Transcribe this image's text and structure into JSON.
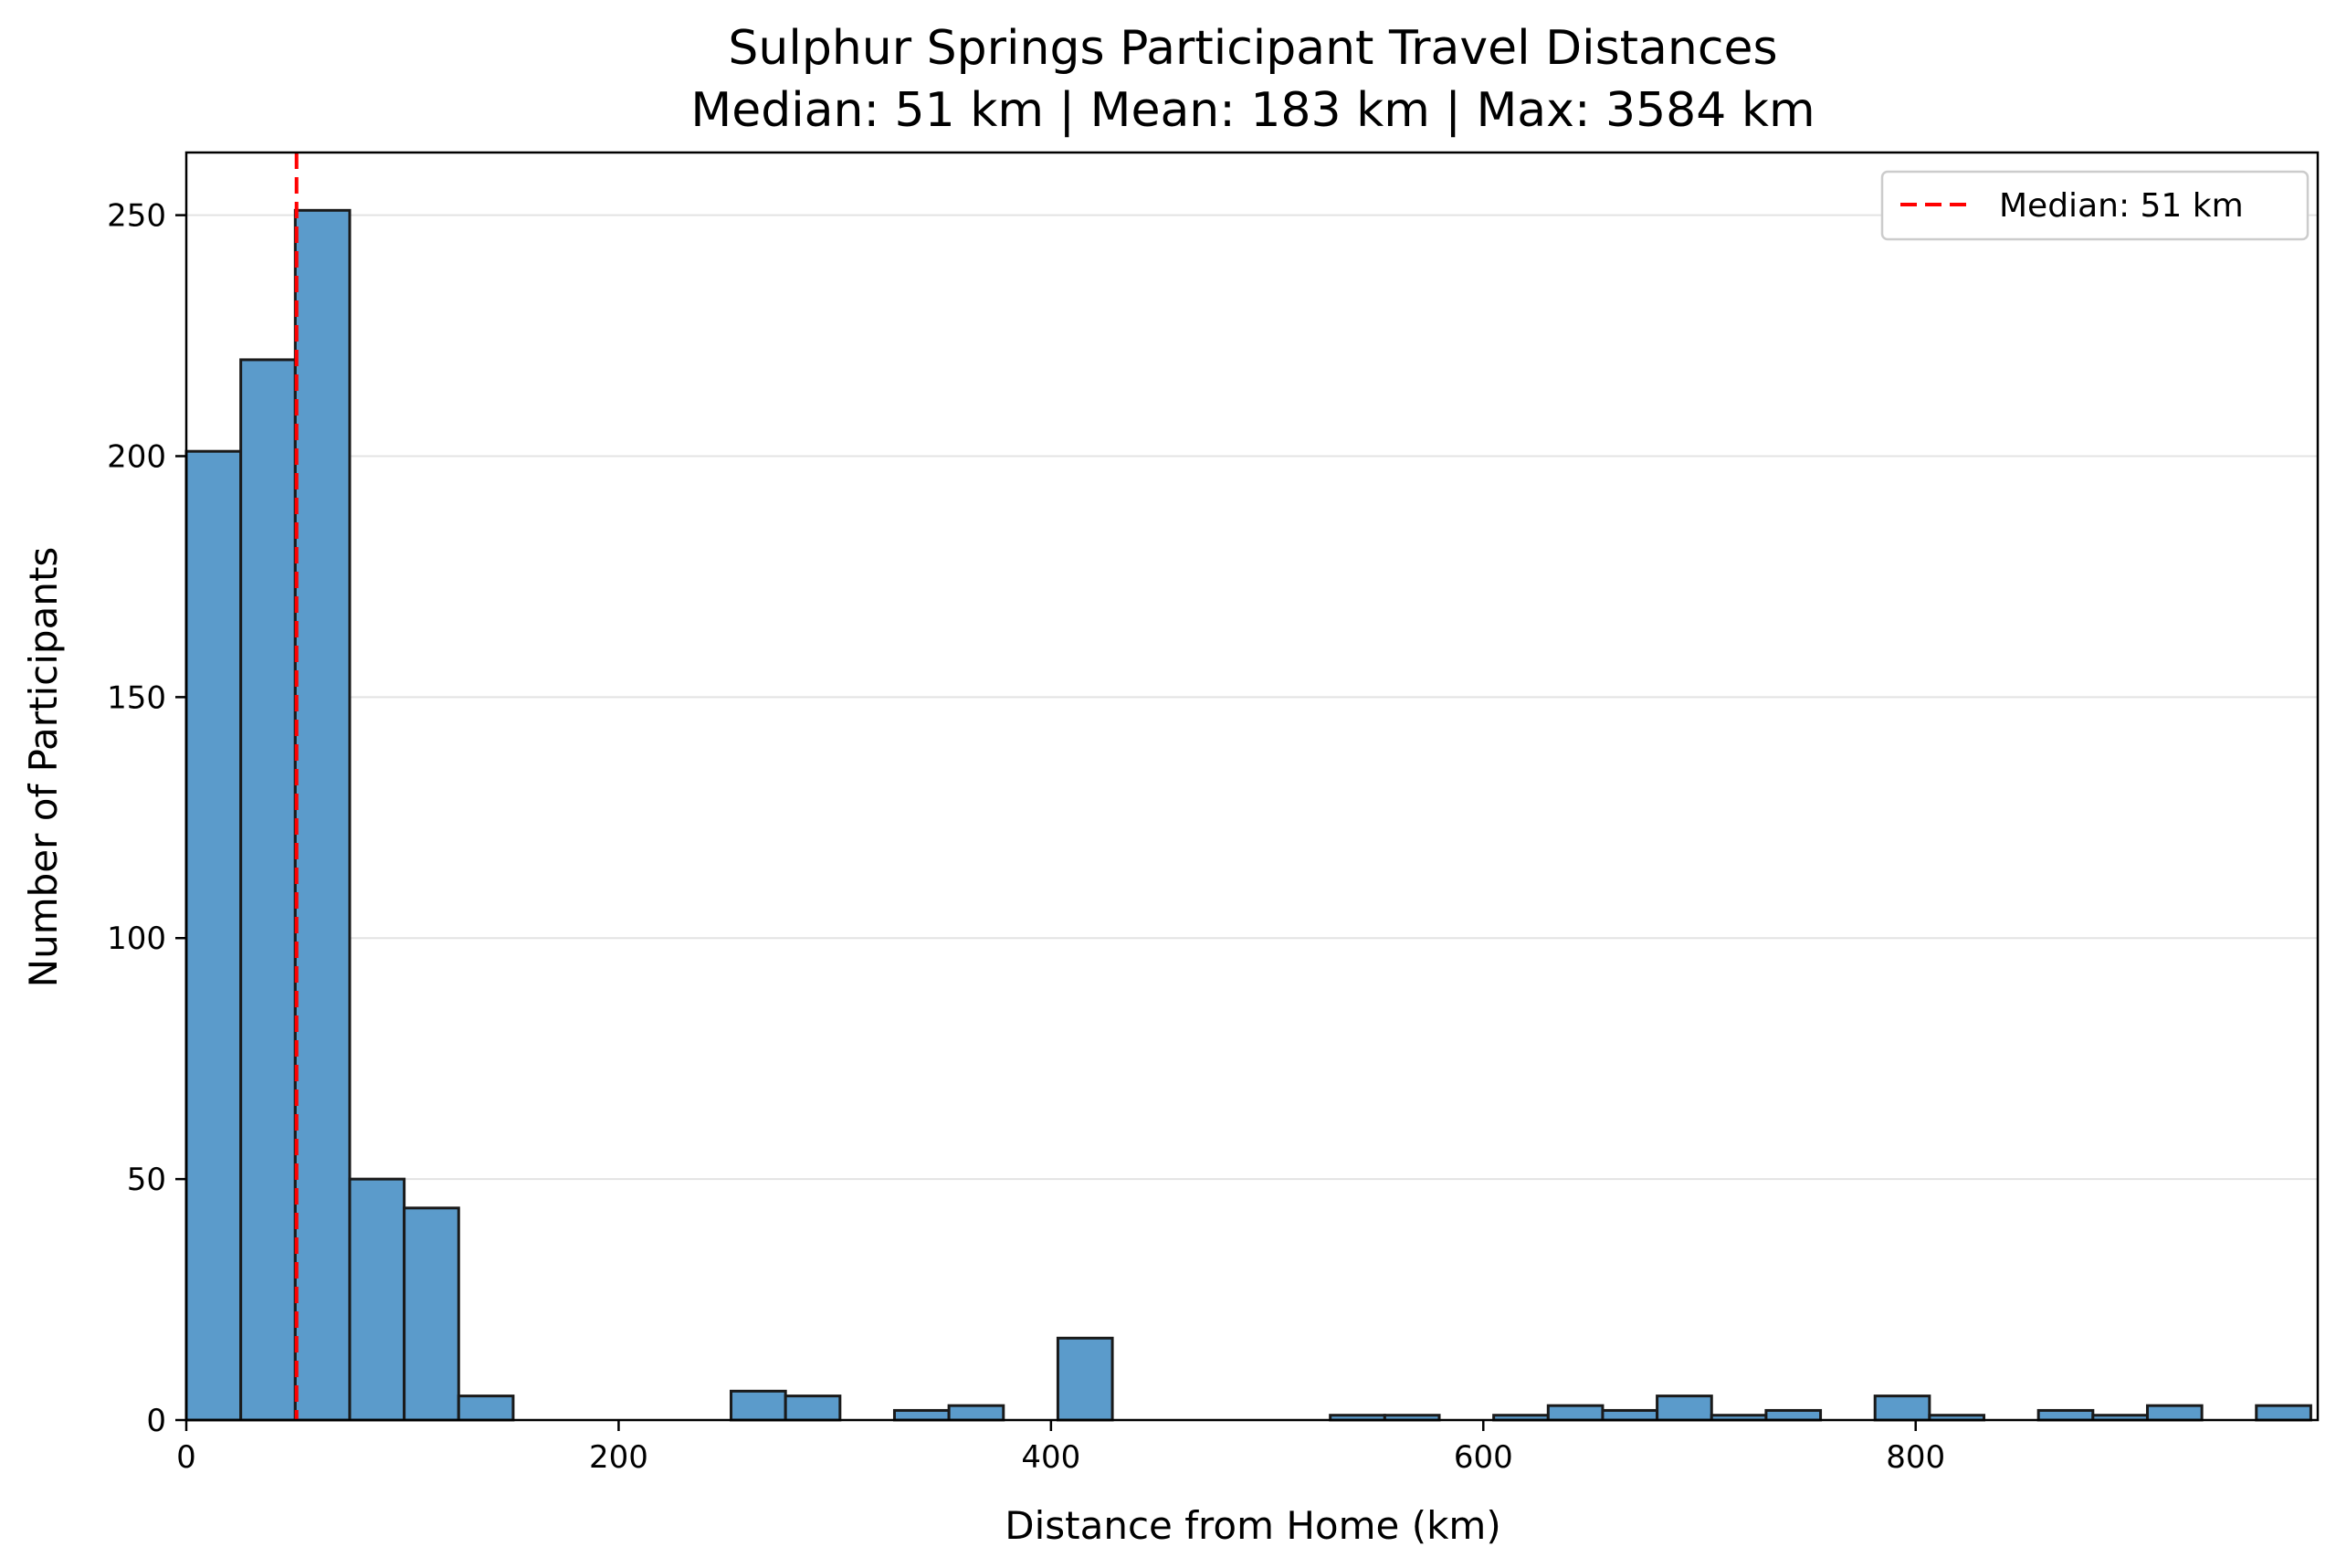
{
  "chart_data": {
    "type": "bar",
    "title": "Sulphur Springs Participant Travel Distances",
    "subtitle": "Median: 51 km | Mean: 183 km | Max: 3584 km",
    "xlabel": "Distance from Home (km)",
    "ylabel": "Number of Participants",
    "xlim": [
      0,
      986
    ],
    "ylim": [
      0,
      263
    ],
    "bin_width": 25.2,
    "x_ticks": [
      {
        "value": 0,
        "label": "0"
      },
      {
        "value": 200,
        "label": "200"
      },
      {
        "value": 400,
        "label": "400"
      },
      {
        "value": 600,
        "label": "600"
      },
      {
        "value": 800,
        "label": "800"
      }
    ],
    "y_ticks": [
      {
        "value": 0,
        "label": "0"
      },
      {
        "value": 50,
        "label": "50"
      },
      {
        "value": 100,
        "label": "100"
      },
      {
        "value": 150,
        "label": "150"
      },
      {
        "value": 200,
        "label": "200"
      },
      {
        "value": 250,
        "label": "250"
      }
    ],
    "bins": [
      {
        "start": 0.0,
        "count": 201
      },
      {
        "start": 25.2,
        "count": 220
      },
      {
        "start": 50.4,
        "count": 251
      },
      {
        "start": 75.6,
        "count": 50
      },
      {
        "start": 100.8,
        "count": 44
      },
      {
        "start": 126.0,
        "count": 5
      },
      {
        "start": 151.2,
        "count": 0
      },
      {
        "start": 176.4,
        "count": 0
      },
      {
        "start": 201.6,
        "count": 0
      },
      {
        "start": 226.8,
        "count": 0
      },
      {
        "start": 252.0,
        "count": 6
      },
      {
        "start": 277.2,
        "count": 5
      },
      {
        "start": 302.4,
        "count": 0
      },
      {
        "start": 327.6,
        "count": 2
      },
      {
        "start": 352.8,
        "count": 3
      },
      {
        "start": 378.0,
        "count": 0
      },
      {
        "start": 403.2,
        "count": 17
      },
      {
        "start": 428.4,
        "count": 0
      },
      {
        "start": 453.6,
        "count": 0
      },
      {
        "start": 478.8,
        "count": 0
      },
      {
        "start": 504.0,
        "count": 0
      },
      {
        "start": 529.2,
        "count": 1
      },
      {
        "start": 554.4,
        "count": 1
      },
      {
        "start": 579.6,
        "count": 0
      },
      {
        "start": 604.8,
        "count": 1
      },
      {
        "start": 630.0,
        "count": 3
      },
      {
        "start": 655.2,
        "count": 2
      },
      {
        "start": 680.4,
        "count": 5
      },
      {
        "start": 705.6,
        "count": 1
      },
      {
        "start": 730.8,
        "count": 2
      },
      {
        "start": 756.0,
        "count": 0
      },
      {
        "start": 781.2,
        "count": 5
      },
      {
        "start": 806.4,
        "count": 1
      },
      {
        "start": 831.6,
        "count": 0
      },
      {
        "start": 856.8,
        "count": 2
      },
      {
        "start": 882.0,
        "count": 1
      },
      {
        "start": 907.2,
        "count": 3
      },
      {
        "start": 932.4,
        "count": 0
      },
      {
        "start": 957.6,
        "count": 3
      }
    ],
    "median_line": {
      "x": 51,
      "label": "Median: 51 km",
      "color": "#ff0000",
      "style": "dashed"
    },
    "bar_color": "#5b9bcb",
    "bar_edge_color": "#1a1a1a",
    "grid": {
      "y": true,
      "x": false
    },
    "legend": {
      "position": "top-right",
      "entries": [
        "Median: 51 km"
      ]
    }
  }
}
